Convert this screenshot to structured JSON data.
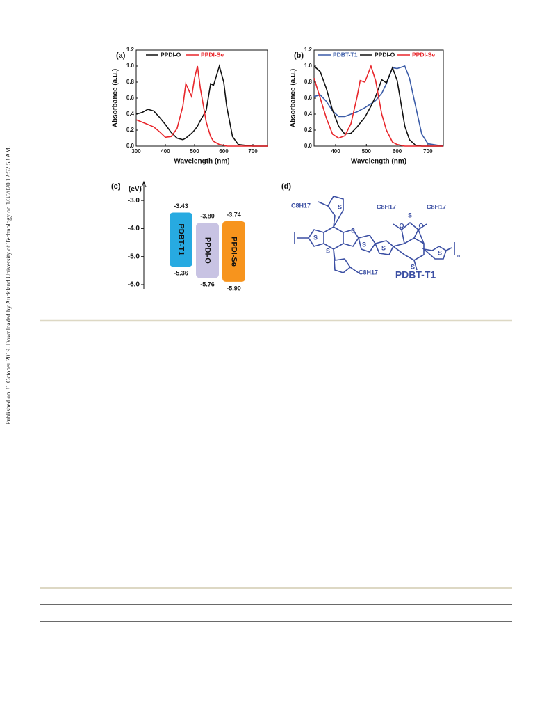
{
  "side_note": "Published on 31 October 2019. Downloaded by Auckland University of Technology on 1/3/2020 12:52:53 AM.",
  "chart_data": [
    {
      "type": "line",
      "label": "(a)",
      "x_label": "Wavelength (nm)",
      "y_label": "Absorbance (a.u.)",
      "x": [
        300,
        320,
        340,
        360,
        380,
        400,
        420,
        440,
        460,
        470,
        480,
        490,
        500,
        510,
        520,
        540,
        555,
        565,
        585,
        600,
        610,
        630,
        650,
        700,
        750
      ],
      "xlim": [
        300,
        750
      ],
      "xticks": [
        300,
        400,
        500,
        600,
        700
      ],
      "ylim": [
        0,
        1.2
      ],
      "yticks": [
        {
          "value": 0,
          "label": "0.0"
        },
        0.2,
        0.4,
        0.6,
        0.8,
        {
          "value": 1,
          "label": "1.0"
        },
        1.2
      ],
      "series": [
        {
          "name": "PPDI-O",
          "color": "#111111",
          "values": [
            0.4,
            0.42,
            0.46,
            0.44,
            0.36,
            0.27,
            0.17,
            0.1,
            0.08,
            0.1,
            0.13,
            0.16,
            0.2,
            0.25,
            0.32,
            0.45,
            0.78,
            0.76,
            1.0,
            0.8,
            0.5,
            0.12,
            0.02,
            0,
            0
          ]
        },
        {
          "name": "PPDI-Se",
          "color": "#e8262b",
          "values": [
            0.33,
            0.3,
            0.27,
            0.24,
            0.18,
            0.11,
            0.12,
            0.22,
            0.5,
            0.78,
            0.7,
            0.62,
            0.85,
            1.0,
            0.72,
            0.3,
            0.12,
            0.06,
            0.02,
            0.01,
            0,
            0,
            0,
            0,
            0
          ]
        }
      ]
    },
    {
      "type": "line",
      "label": "(b)",
      "x_label": "Wavelength (nm)",
      "y_label": "Absorbance (a.u.)",
      "x": [
        330,
        350,
        370,
        390,
        410,
        430,
        450,
        470,
        480,
        495,
        515,
        530,
        550,
        565,
        585,
        600,
        625,
        640,
        660,
        680,
        700,
        750
      ],
      "xlim": [
        330,
        750
      ],
      "xticks": [
        400,
        500,
        600,
        700
      ],
      "ylim": [
        0,
        1.2
      ],
      "yticks": [
        {
          "value": 0,
          "label": "0.0"
        },
        0.2,
        0.4,
        0.6,
        0.8,
        {
          "value": 1,
          "label": "1.0"
        },
        1.2
      ],
      "series": [
        {
          "name": "PDBT-T1",
          "color": "#3b5ca8",
          "values": [
            0.62,
            0.64,
            0.56,
            0.44,
            0.37,
            0.37,
            0.4,
            0.43,
            0.45,
            0.48,
            0.53,
            0.57,
            0.66,
            0.78,
            0.98,
            0.97,
            1.0,
            0.85,
            0.5,
            0.15,
            0.03,
            0
          ]
        },
        {
          "name": "PPDI-O",
          "color": "#111111",
          "values": [
            1.0,
            0.93,
            0.72,
            0.45,
            0.25,
            0.15,
            0.16,
            0.24,
            0.29,
            0.36,
            0.5,
            0.62,
            0.83,
            0.79,
            0.98,
            0.82,
            0.25,
            0.08,
            0.01,
            0,
            0,
            0
          ]
        },
        {
          "name": "PPDI-Se",
          "color": "#e8262b",
          "values": [
            0.85,
            0.6,
            0.35,
            0.15,
            0.1,
            0.13,
            0.28,
            0.62,
            0.82,
            0.8,
            1.0,
            0.82,
            0.4,
            0.2,
            0.05,
            0.02,
            0,
            0,
            0,
            0,
            0,
            0
          ]
        }
      ]
    },
    {
      "type": "energy",
      "label": "(c)",
      "y_label": "(eV)",
      "ylim": [
        -2.5,
        -6.15
      ],
      "yticks": [
        {
          "value": -3,
          "label": "-3.0"
        },
        {
          "value": -4,
          "label": "-4.0"
        },
        {
          "value": -5,
          "label": "-5.0"
        },
        {
          "value": -6,
          "label": "-6.0"
        }
      ],
      "series": [
        {
          "name": "PDBT-T1",
          "color": "#27aae1",
          "values": [
            -3.43,
            -5.36
          ]
        },
        {
          "name": "PPDI-O",
          "color": "#c8c3e3",
          "values": [
            -3.8,
            -5.76
          ],
          "value_labels": [
            "-3.80",
            "-5.76"
          ]
        },
        {
          "name": "PPDI-Se",
          "color": "#f7941d",
          "values": [
            -3.74,
            -5.9
          ],
          "value_labels": [
            "-3.74",
            "-5.90"
          ]
        }
      ]
    }
  ],
  "structure": {
    "label": "(d)",
    "name": "PDBT-T1",
    "side_chains": [
      "C8H17",
      "C8H17",
      "C8H17",
      "C8H17"
    ],
    "atoms": [
      "S",
      "S",
      "S",
      "S",
      "S",
      "S",
      "S",
      "S",
      "S",
      "O",
      "O"
    ],
    "repeat": "n"
  }
}
